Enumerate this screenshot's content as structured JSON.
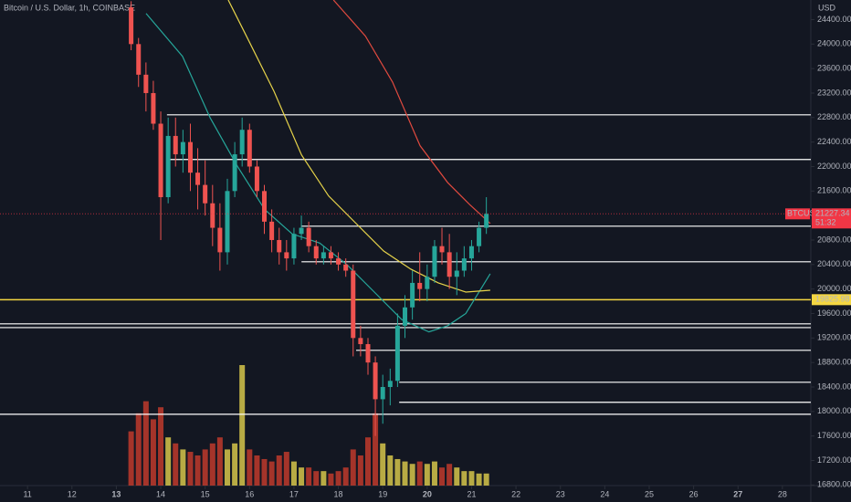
{
  "chart_data": {
    "type": "candlestick",
    "title": "Bitcoin / U.S. Dollar, 1h, COINBASE",
    "currency": "USD",
    "symbol_label": "BTCUSD",
    "countdown": "51:32",
    "x": [
      13.333,
      13.5,
      13.667,
      13.833,
      14.0,
      14.167,
      14.333,
      14.5,
      14.667,
      14.833,
      15.0,
      15.167,
      15.333,
      15.5,
      15.667,
      15.833,
      16.0,
      16.167,
      16.333,
      16.5,
      16.667,
      16.833,
      17.0,
      17.167,
      17.333,
      17.5,
      17.667,
      17.833,
      18.0,
      18.167,
      18.333,
      18.5,
      18.667,
      18.833,
      19.0,
      19.167,
      19.333,
      19.5,
      19.667,
      19.833,
      20.0,
      20.167,
      20.333,
      20.5,
      20.667,
      20.833,
      21.0,
      21.167,
      21.333
    ],
    "open": [
      24600,
      24000,
      23500,
      23200,
      22700,
      21500,
      22500,
      22200,
      22400,
      21900,
      21700,
      21400,
      21000,
      20600,
      21600,
      22200,
      22600,
      22000,
      21600,
      21100,
      20800,
      20600,
      20500,
      20900,
      21000,
      20700,
      20500,
      20600,
      20500,
      20400,
      20300,
      19200,
      19100,
      18800,
      18200,
      18400,
      18500,
      19400,
      19700,
      20100,
      20000,
      20200,
      20700,
      20600,
      20200,
      20300,
      20500,
      20700,
      21000
    ],
    "high": [
      24700,
      24100,
      23700,
      23400,
      22900,
      22800,
      22800,
      22600,
      22700,
      22300,
      22100,
      21700,
      21400,
      21800,
      22400,
      22800,
      22700,
      22100,
      21700,
      21300,
      21000,
      20800,
      21000,
      21200,
      21100,
      20800,
      20700,
      20700,
      20600,
      20500,
      20400,
      19400,
      19200,
      18900,
      18600,
      18700,
      19600,
      19900,
      20300,
      20600,
      20400,
      20800,
      21000,
      20900,
      20600,
      20700,
      20800,
      21100,
      21500
    ],
    "low": [
      23900,
      23300,
      22900,
      22600,
      20800,
      21400,
      22000,
      21900,
      21600,
      21300,
      21200,
      20700,
      20300,
      20400,
      21500,
      22000,
      21900,
      21500,
      20900,
      20600,
      20400,
      20300,
      20400,
      20800,
      20600,
      20400,
      20400,
      20400,
      20300,
      20200,
      18900,
      18900,
      18600,
      17600,
      17800,
      18100,
      18400,
      19200,
      19500,
      19800,
      19800,
      20100,
      20400,
      20000,
      19900,
      20200,
      20300,
      20600,
      20900
    ],
    "close": [
      24000,
      23500,
      23200,
      22700,
      21500,
      22500,
      22200,
      22400,
      21900,
      21700,
      21400,
      21000,
      20600,
      21600,
      22200,
      22600,
      22000,
      21600,
      21100,
      20800,
      20600,
      20500,
      20900,
      21000,
      20700,
      20500,
      20600,
      20500,
      20400,
      20300,
      19200,
      19100,
      18800,
      18200,
      18400,
      18500,
      19400,
      19700,
      20100,
      20000,
      20200,
      20700,
      20600,
      20200,
      20300,
      20500,
      20700,
      21000,
      21227.34
    ],
    "volume": [
      45,
      60,
      70,
      55,
      65,
      40,
      35,
      30,
      28,
      25,
      30,
      35,
      40,
      30,
      35,
      100,
      30,
      25,
      22,
      20,
      25,
      28,
      20,
      15,
      15,
      12,
      12,
      10,
      12,
      15,
      30,
      25,
      40,
      60,
      35,
      25,
      22,
      20,
      18,
      20,
      18,
      20,
      15,
      18,
      15,
      12,
      12,
      10,
      10
    ],
    "up_color": "#26a69a",
    "down_color": "#ef5350",
    "volume_up_color": "#d6c54a",
    "volume_down_color": "#c0392b",
    "moving_averages": [
      {
        "color": "#26a69a",
        "x": [
          13.67,
          14.49,
          15.11,
          15.73,
          16.34,
          16.96,
          17.58,
          18.19,
          18.81,
          19.43,
          20.04,
          20.46,
          20.87,
          21.42
        ],
        "values": [
          24500,
          23800,
          22800,
          22000,
          21300,
          20900,
          20750,
          20400,
          19950,
          19500,
          19300,
          19400,
          19600,
          20250
        ]
      },
      {
        "color": "#e6d34a",
        "x": [
          15.52,
          15.93,
          16.55,
          17.17,
          17.78,
          18.4,
          19.02,
          19.63,
          20.25,
          20.87,
          21.42
        ],
        "values": [
          24720,
          24130,
          23230,
          22190,
          21520,
          21070,
          20620,
          20325,
          20100,
          19950,
          19980
        ]
      },
      {
        "color": "#e04a3f",
        "x": [
          17.89,
          18.61,
          19.22,
          19.84,
          20.46,
          20.97,
          21.42
        ],
        "values": [
          24720,
          24130,
          23380,
          22340,
          21740,
          21370,
          21070
        ]
      }
    ],
    "levels": [
      {
        "value": 22845,
        "start": 14.14,
        "color": "#ffffff"
      },
      {
        "value": 22115,
        "start": 14.14,
        "color": "#ffffff"
      },
      {
        "value": 21026,
        "start": 17.17,
        "color": "#ffffff"
      },
      {
        "value": 20445,
        "start": 17.17,
        "color": "#ffffff"
      },
      {
        "value": 19431,
        "start": 10.38,
        "color": "#ffffff"
      },
      {
        "value": 19370,
        "start": 10.38,
        "color": "#ffffff"
      },
      {
        "value": 18999,
        "start": 18.4,
        "color": "#ffffff"
      },
      {
        "value": 18477,
        "start": 19.37,
        "color": "#ffffff"
      },
      {
        "value": 18150,
        "start": 19.37,
        "color": "#ffffff"
      },
      {
        "value": 17955,
        "start": 10.38,
        "color": "#ffffff"
      },
      {
        "value": 19825.98,
        "start": 10.38,
        "color": "#f5d742",
        "label": "19825.98"
      }
    ],
    "last_price_label": "21227.34",
    "xlim": [
      10.38,
      28.64
    ],
    "ylim": [
      16790,
      24720
    ],
    "xticks": [
      11,
      12,
      13,
      14,
      15,
      16,
      17,
      18,
      19,
      20,
      21,
      22,
      23,
      24,
      25,
      26,
      27,
      28
    ],
    "bold_xticks": [
      13,
      20,
      27
    ],
    "yticks": [
      {
        "value": 16800,
        "label": "16800.00"
      },
      {
        "value": 17200,
        "label": "17200.00"
      },
      {
        "value": 17600,
        "label": "17600.00"
      },
      {
        "value": 18000,
        "label": "18000.00"
      },
      {
        "value": 18400,
        "label": "18400.00"
      },
      {
        "value": 18800,
        "label": "18800.00"
      },
      {
        "value": 19200,
        "label": "19200.00"
      },
      {
        "value": 19600,
        "label": "19600.00"
      },
      {
        "value": 20000,
        "label": "20000.00"
      },
      {
        "value": 20400,
        "label": "20400.00"
      },
      {
        "value": 20800,
        "label": "20800.00"
      },
      {
        "value": 21600,
        "label": "21600.00"
      },
      {
        "value": 22000,
        "label": "22000.00"
      },
      {
        "value": 22400,
        "label": "22400.00"
      },
      {
        "value": 22800,
        "label": "22800.00"
      },
      {
        "value": 23200,
        "label": "23200.00"
      },
      {
        "value": 23600,
        "label": "23600.00"
      },
      {
        "value": 24000,
        "label": "24000.00"
      },
      {
        "value": 24400,
        "label": "24400.00"
      }
    ]
  }
}
